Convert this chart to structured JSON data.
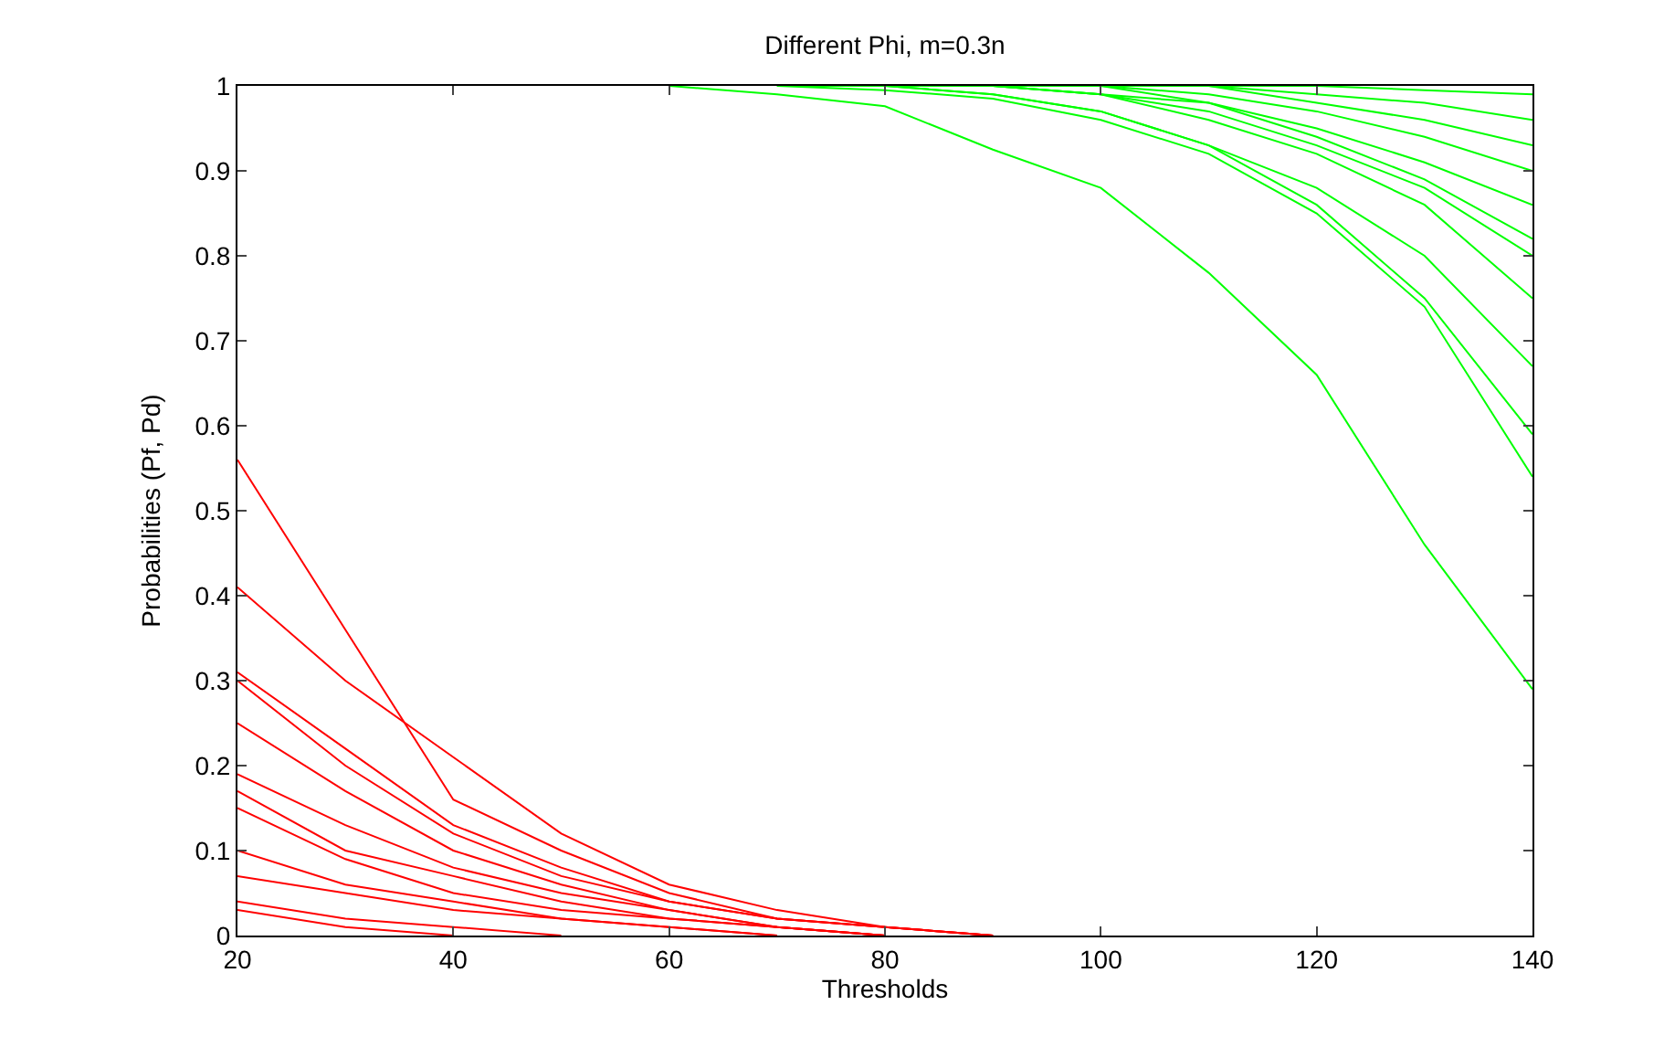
{
  "chart_data": {
    "type": "line",
    "title": "Different Phi, m=0.3n",
    "xlabel": "Thresholds",
    "ylabel": "Probabilities (Pf, Pd)",
    "x": [
      20,
      30,
      40,
      50,
      60,
      70,
      80,
      90,
      100,
      110,
      120,
      130,
      140
    ],
    "xlim": [
      20,
      140
    ],
    "xticks": [
      20,
      40,
      60,
      80,
      100,
      120,
      140
    ],
    "ylim": [
      0,
      1
    ],
    "yticks": [
      0,
      0.1,
      0.2,
      0.3,
      0.4,
      0.5,
      0.6,
      0.7,
      0.8,
      0.9,
      1
    ],
    "marker": "none",
    "line_style": "solid",
    "series": [
      {
        "color": "#ff0000",
        "values": [
          0.56,
          0.36,
          0.16,
          0.1,
          0.05,
          0.02,
          0.01,
          0,
          null,
          null,
          null,
          null,
          null
        ]
      },
      {
        "color": "#ff0000",
        "values": [
          0.41,
          0.3,
          0.21,
          0.12,
          0.06,
          0.03,
          0.01,
          0,
          null,
          null,
          null,
          null,
          null
        ]
      },
      {
        "color": "#ff0000",
        "values": [
          0.31,
          0.22,
          0.13,
          0.08,
          0.04,
          0.02,
          0.01,
          0,
          null,
          null,
          null,
          null,
          null
        ]
      },
      {
        "color": "#ff0000",
        "values": [
          0.3,
          0.2,
          0.12,
          0.07,
          0.04,
          0.02,
          0.01,
          0,
          null,
          null,
          null,
          null,
          null
        ]
      },
      {
        "color": "#ff0000",
        "values": [
          0.25,
          0.17,
          0.1,
          0.06,
          0.03,
          0.01,
          0,
          null,
          null,
          null,
          null,
          null,
          null
        ]
      },
      {
        "color": "#ff0000",
        "values": [
          0.19,
          0.13,
          0.08,
          0.05,
          0.03,
          0.01,
          0,
          null,
          null,
          null,
          null,
          null,
          null
        ]
      },
      {
        "color": "#ff0000",
        "values": [
          0.17,
          0.1,
          0.07,
          0.04,
          0.02,
          0.01,
          0,
          null,
          null,
          null,
          null,
          null,
          null
        ]
      },
      {
        "color": "#ff0000",
        "values": [
          0.15,
          0.09,
          0.05,
          0.03,
          0.02,
          0.01,
          0,
          null,
          null,
          null,
          null,
          null,
          null
        ]
      },
      {
        "color": "#ff0000",
        "values": [
          0.1,
          0.06,
          0.04,
          0.02,
          0.01,
          0,
          null,
          null,
          null,
          null,
          null,
          null,
          null
        ]
      },
      {
        "color": "#ff0000",
        "values": [
          0.07,
          0.05,
          0.03,
          0.02,
          0.01,
          0,
          null,
          null,
          null,
          null,
          null,
          null,
          null
        ]
      },
      {
        "color": "#ff0000",
        "values": [
          0.04,
          0.02,
          0.01,
          0,
          null,
          null,
          null,
          null,
          null,
          null,
          null,
          null,
          null
        ]
      },
      {
        "color": "#ff0000",
        "values": [
          0.03,
          0.01,
          0,
          null,
          null,
          null,
          null,
          null,
          null,
          null,
          null,
          null,
          null
        ]
      },
      {
        "color": "#00ff00",
        "values": [
          null,
          null,
          null,
          null,
          1,
          0.99,
          0.976,
          0.925,
          0.88,
          0.78,
          0.66,
          0.46,
          0.29
        ]
      },
      {
        "color": "#00ff00",
        "values": [
          null,
          null,
          null,
          null,
          null,
          1,
          0.995,
          0.985,
          0.96,
          0.92,
          0.85,
          0.74,
          0.54
        ]
      },
      {
        "color": "#00ff00",
        "values": [
          null,
          null,
          null,
          null,
          null,
          1,
          1,
          0.99,
          0.97,
          0.93,
          0.86,
          0.75,
          0.59
        ]
      },
      {
        "color": "#00ff00",
        "values": [
          null,
          null,
          null,
          null,
          null,
          1,
          1,
          0.99,
          0.97,
          0.93,
          0.88,
          0.8,
          0.67
        ]
      },
      {
        "color": "#00ff00",
        "values": [
          null,
          null,
          null,
          null,
          null,
          null,
          1,
          1,
          0.99,
          0.96,
          0.92,
          0.86,
          0.75
        ]
      },
      {
        "color": "#00ff00",
        "values": [
          null,
          null,
          null,
          null,
          null,
          null,
          1,
          1,
          0.99,
          0.97,
          0.93,
          0.88,
          0.8
        ]
      },
      {
        "color": "#00ff00",
        "values": [
          null,
          null,
          null,
          null,
          null,
          null,
          1,
          1,
          0.99,
          0.98,
          0.94,
          0.89,
          0.82
        ]
      },
      {
        "color": "#00ff00",
        "values": [
          null,
          null,
          null,
          null,
          null,
          null,
          null,
          1,
          1,
          0.98,
          0.95,
          0.91,
          0.86
        ]
      },
      {
        "color": "#00ff00",
        "values": [
          null,
          null,
          null,
          null,
          null,
          null,
          null,
          1,
          1,
          0.99,
          0.97,
          0.94,
          0.9
        ]
      },
      {
        "color": "#00ff00",
        "values": [
          null,
          null,
          null,
          null,
          null,
          null,
          null,
          null,
          1,
          1,
          0.98,
          0.96,
          0.93
        ]
      },
      {
        "color": "#00ff00",
        "values": [
          null,
          null,
          null,
          null,
          null,
          null,
          null,
          null,
          1,
          1,
          0.99,
          0.98,
          0.96
        ]
      },
      {
        "color": "#00ff00",
        "values": [
          null,
          null,
          null,
          null,
          null,
          null,
          null,
          null,
          null,
          1,
          1,
          0.995,
          0.99
        ]
      }
    ]
  }
}
